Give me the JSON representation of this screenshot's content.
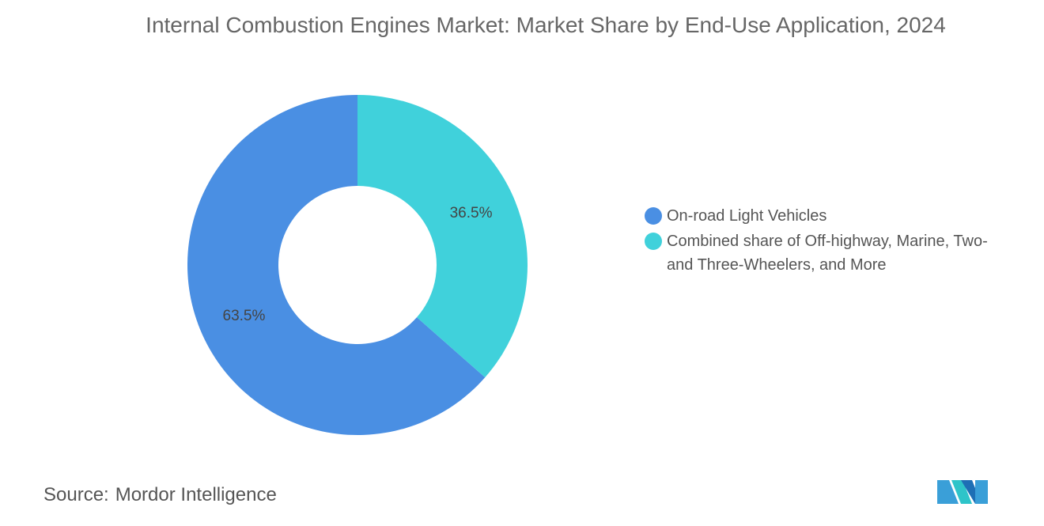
{
  "chart_data": {
    "type": "donut",
    "title": "Internal Combustion Engines Market: Market Share by End-Use Application, 2024",
    "categories": [
      "On-road Light Vehicles",
      "Combined share of Off-highway, Marine, Two- and Three-Wheelers, and More"
    ],
    "values": [
      63.5,
      36.5
    ],
    "value_labels": [
      "63.5%",
      "36.5%"
    ],
    "colors": [
      "#4a8fe3",
      "#40d1db"
    ],
    "source_label": "Source:",
    "source": "Mordor Intelligence"
  }
}
